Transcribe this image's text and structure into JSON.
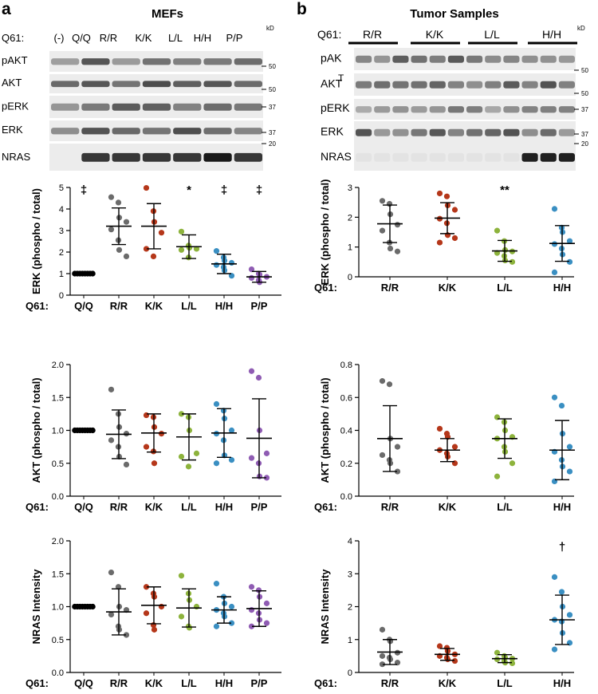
{
  "panels": {
    "a": {
      "letter": "a",
      "title": "MEFs",
      "kd_label": "kD",
      "lane_header": "Q61:",
      "lanes": [
        "(-)",
        "Q/Q",
        "R/R",
        "K/K",
        "L/L",
        "H/H",
        "P/P"
      ],
      "blots": [
        {
          "label": "pAKT",
          "markers": [
            "50"
          ]
        },
        {
          "label": "AKT",
          "markers": [
            "50"
          ]
        },
        {
          "label": "pERK",
          "markers": [
            "37"
          ]
        },
        {
          "label": "ERK",
          "markers": [
            "37"
          ]
        },
        {
          "label": "NRAS",
          "markers": [
            "20"
          ]
        }
      ]
    },
    "b": {
      "letter": "b",
      "title": "Tumor Samples",
      "kd_label": "kD",
      "lane_header": "Q61:",
      "lanes": [
        "R/R",
        "K/K",
        "L/L",
        "H/H"
      ],
      "blots": [
        {
          "label": "pAK",
          "markers": [
            "50"
          ]
        },
        {
          "label": "AKT",
          "markers": [
            "50"
          ]
        },
        {
          "label": "pERK",
          "markers": [
            "37"
          ]
        },
        {
          "label": "ERK",
          "markers": [
            "37"
          ]
        },
        {
          "label": "NRAS",
          "markers": [
            "20"
          ]
        }
      ],
      "blot_stray_glyph": "T"
    }
  },
  "colors": {
    "Q/Q": "#000000",
    "R/R": "#6b6b6b",
    "K/K": "#b5371a",
    "L/L": "#8db33c",
    "H/H": "#3a8fc2",
    "P/P": "#8f5cb3"
  },
  "chart_data": [
    {
      "id": "a-erk",
      "type": "scatter",
      "panel": "a",
      "ylabel": "ERK (phospho / total)",
      "xlabel_prefix": "Q61:",
      "ylim": [
        0,
        5
      ],
      "yticks": [
        "0",
        "1",
        "2",
        "3",
        "4",
        "5"
      ],
      "categories": [
        "Q/Q",
        "R/R",
        "K/K",
        "L/L",
        "H/H",
        "P/P"
      ],
      "groups": [
        {
          "cat": "Q/Q",
          "mean": 1.0,
          "sd": 0.0,
          "points": [
            1,
            1,
            1,
            1,
            1,
            1,
            1,
            1
          ],
          "annotation": "‡"
        },
        {
          "cat": "R/R",
          "mean": 3.2,
          "sd": 0.85,
          "points": [
            4.55,
            4.3,
            3.6,
            3.4,
            3.05,
            2.55,
            2.1,
            1.8
          ],
          "annotation": ""
        },
        {
          "cat": "K/K",
          "mean": 3.2,
          "sd": 1.05,
          "points": [
            4.98,
            3.9,
            3.4,
            2.9,
            2.15,
            1.8
          ],
          "annotation": ""
        },
        {
          "cat": "L/L",
          "mean": 2.25,
          "sd": 0.55,
          "points": [
            2.95,
            2.3,
            2.2,
            2.15,
            2.1,
            1.75
          ],
          "annotation": "*"
        },
        {
          "cat": "H/H",
          "mean": 1.45,
          "sd": 0.45,
          "points": [
            2.05,
            1.75,
            1.6,
            1.5,
            1.4,
            1.3,
            1.15,
            0.9
          ],
          "annotation": "‡"
        },
        {
          "cat": "P/P",
          "mean": 0.85,
          "sd": 0.25,
          "points": [
            1.2,
            1.0,
            0.95,
            0.85,
            0.8,
            0.7,
            0.6
          ],
          "annotation": "‡"
        }
      ]
    },
    {
      "id": "b-erk",
      "type": "scatter",
      "panel": "b",
      "ylabel": "ERK (phospho / total)",
      "xlabel_prefix": "Q61:",
      "ylim": [
        0,
        3
      ],
      "yticks": [
        "0",
        "1",
        "2",
        "3"
      ],
      "categories": [
        "R/R",
        "K/K",
        "L/L",
        "H/H"
      ],
      "groups": [
        {
          "cat": "R/R",
          "mean": 1.78,
          "sd": 0.63,
          "points": [
            2.55,
            2.45,
            2.1,
            1.75,
            1.55,
            1.15,
            0.95,
            0.85
          ],
          "annotation": ""
        },
        {
          "cat": "K/K",
          "mean": 1.97,
          "sd": 0.52,
          "points": [
            2.8,
            2.7,
            2.4,
            2.25,
            1.95,
            1.8,
            1.4,
            1.3,
            1.15
          ],
          "annotation": ""
        },
        {
          "cat": "L/L",
          "mean": 0.87,
          "sd": 0.35,
          "points": [
            1.55,
            1.2,
            0.9,
            0.85,
            0.8,
            0.7,
            0.55,
            0.5
          ],
          "annotation": "**"
        },
        {
          "cat": "H/H",
          "mean": 1.12,
          "sd": 0.6,
          "points": [
            2.28,
            1.65,
            1.5,
            1.2,
            1.1,
            0.95,
            0.75,
            0.5,
            0.15
          ],
          "annotation": ""
        }
      ]
    },
    {
      "id": "a-akt",
      "type": "scatter",
      "panel": "a",
      "ylabel": "AKT (phospho / total)",
      "xlabel_prefix": "Q61:",
      "ylim": [
        0,
        2
      ],
      "yticks": [
        "0.0",
        "0.5",
        "1.0",
        "1.5",
        "2.0"
      ],
      "categories": [
        "Q/Q",
        "R/R",
        "K/K",
        "L/L",
        "H/H",
        "P/P"
      ],
      "groups": [
        {
          "cat": "Q/Q",
          "mean": 1.0,
          "sd": 0.0,
          "points": [
            1,
            1,
            1,
            1,
            1,
            1,
            1,
            1
          ],
          "annotation": ""
        },
        {
          "cat": "R/R",
          "mean": 0.94,
          "sd": 0.37,
          "points": [
            1.62,
            1.25,
            1.05,
            0.95,
            0.85,
            0.75,
            0.6,
            0.48
          ],
          "annotation": ""
        },
        {
          "cat": "K/K",
          "mean": 0.96,
          "sd": 0.29,
          "points": [
            1.23,
            1.2,
            1.05,
            0.95,
            0.75,
            0.68,
            0.5
          ],
          "annotation": ""
        },
        {
          "cat": "L/L",
          "mean": 0.9,
          "sd": 0.35,
          "points": [
            1.25,
            1.2,
            1.0,
            0.65,
            0.6,
            0.45
          ],
          "annotation": ""
        },
        {
          "cat": "H/H",
          "mean": 0.96,
          "sd": 0.37,
          "points": [
            1.4,
            1.3,
            1.18,
            1.0,
            0.95,
            0.85,
            0.62,
            0.55,
            0.5
          ],
          "annotation": ""
        },
        {
          "cat": "P/P",
          "mean": 0.88,
          "sd": 0.6,
          "points": [
            1.9,
            1.8,
            1.0,
            0.65,
            0.58,
            0.5,
            0.3,
            0.28
          ],
          "annotation": ""
        }
      ]
    },
    {
      "id": "b-akt",
      "type": "scatter",
      "panel": "b",
      "ylabel": "AKT (phospho / total)",
      "xlabel_prefix": "Q61:",
      "ylim": [
        0,
        0.8
      ],
      "yticks": [
        "0.0",
        "0.2",
        "0.4",
        "0.6",
        "0.8"
      ],
      "categories": [
        "R/R",
        "K/K",
        "L/L",
        "H/H"
      ],
      "groups": [
        {
          "cat": "R/R",
          "mean": 0.35,
          "sd": 0.2,
          "points": [
            0.7,
            0.68,
            0.35,
            0.3,
            0.25,
            0.22,
            0.2,
            0.15
          ],
          "annotation": ""
        },
        {
          "cat": "K/K",
          "mean": 0.28,
          "sd": 0.07,
          "points": [
            0.41,
            0.38,
            0.36,
            0.3,
            0.28,
            0.26,
            0.24,
            0.2
          ],
          "annotation": ""
        },
        {
          "cat": "L/L",
          "mean": 0.35,
          "sd": 0.12,
          "points": [
            0.48,
            0.45,
            0.4,
            0.36,
            0.35,
            0.3,
            0.27,
            0.2,
            0.12
          ],
          "annotation": ""
        },
        {
          "cat": "H/H",
          "mean": 0.28,
          "sd": 0.18,
          "points": [
            0.6,
            0.55,
            0.38,
            0.3,
            0.27,
            0.22,
            0.18,
            0.15,
            0.09
          ],
          "annotation": ""
        }
      ]
    },
    {
      "id": "a-nras",
      "type": "scatter",
      "panel": "a",
      "ylabel": "NRAS Intensity",
      "xlabel_prefix": "Q61:",
      "ylim": [
        0,
        2
      ],
      "yticks": [
        "0.0",
        "0.5",
        "1.0",
        "1.5",
        "2.0"
      ],
      "categories": [
        "Q/Q",
        "R/R",
        "K/K",
        "L/L",
        "H/H",
        "P/P"
      ],
      "groups": [
        {
          "cat": "Q/Q",
          "mean": 1.0,
          "sd": 0.0,
          "points": [
            1,
            1,
            1,
            1,
            1,
            1,
            1,
            1
          ],
          "annotation": ""
        },
        {
          "cat": "R/R",
          "mean": 0.92,
          "sd": 0.35,
          "points": [
            1.52,
            1.3,
            1.0,
            0.95,
            0.88,
            0.7,
            0.65,
            0.57
          ],
          "annotation": ""
        },
        {
          "cat": "K/K",
          "mean": 1.02,
          "sd": 0.28,
          "points": [
            1.3,
            1.2,
            1.15,
            1.0,
            0.9,
            0.72,
            0.65
          ],
          "annotation": ""
        },
        {
          "cat": "L/L",
          "mean": 0.98,
          "sd": 0.29,
          "points": [
            1.47,
            1.2,
            1.1,
            1.0,
            0.85,
            0.7,
            0.68
          ],
          "annotation": ""
        },
        {
          "cat": "H/H",
          "mean": 0.95,
          "sd": 0.2,
          "points": [
            1.35,
            1.15,
            1.05,
            1.0,
            0.95,
            0.9,
            0.85,
            0.75,
            0.7
          ],
          "annotation": ""
        },
        {
          "cat": "P/P",
          "mean": 0.97,
          "sd": 0.27,
          "points": [
            1.3,
            1.25,
            1.15,
            1.05,
            0.95,
            0.9,
            0.8,
            0.75,
            0.7
          ],
          "annotation": ""
        }
      ]
    },
    {
      "id": "b-nras",
      "type": "scatter",
      "panel": "b",
      "ylabel": "NRAS Intensity",
      "xlabel_prefix": "Q61:",
      "ylim": [
        0,
        4
      ],
      "yticks": [
        "0",
        "1",
        "2",
        "3",
        "4"
      ],
      "categories": [
        "R/R",
        "K/K",
        "L/L",
        "H/H"
      ],
      "groups": [
        {
          "cat": "R/R",
          "mean": 0.62,
          "sd": 0.38,
          "points": [
            1.3,
            1.0,
            0.95,
            0.6,
            0.5,
            0.45,
            0.4,
            0.3,
            0.25
          ],
          "annotation": ""
        },
        {
          "cat": "K/K",
          "mean": 0.55,
          "sd": 0.18,
          "points": [
            0.8,
            0.75,
            0.65,
            0.55,
            0.5,
            0.45,
            0.4,
            0.35
          ],
          "annotation": ""
        },
        {
          "cat": "L/L",
          "mean": 0.42,
          "sd": 0.12,
          "points": [
            0.6,
            0.5,
            0.45,
            0.42,
            0.4,
            0.35,
            0.3,
            0.28
          ],
          "annotation": ""
        },
        {
          "cat": "H/H",
          "mean": 1.6,
          "sd": 0.75,
          "points": [
            2.9,
            2.45,
            2.0,
            1.75,
            1.6,
            1.55,
            1.2,
            0.9,
            0.7
          ],
          "annotation": "†"
        }
      ]
    }
  ]
}
